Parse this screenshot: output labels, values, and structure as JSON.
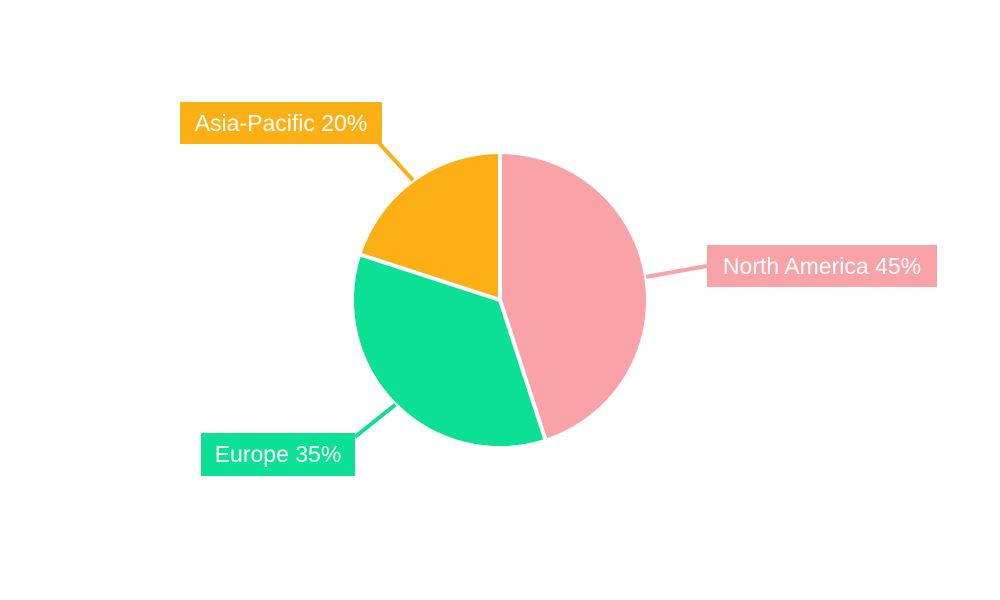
{
  "page": {
    "background_color": "#ffffff"
  },
  "chart_data": {
    "type": "pie",
    "start_angle": "top",
    "direction": "clockwise",
    "legend": "none",
    "slice_border_color": "#ffffff",
    "label_text_color": "#ffffff",
    "slices": [
      {
        "name": "North America",
        "value": 45,
        "color": "#F9A2A7",
        "label": "North America 45%"
      },
      {
        "name": "Europe",
        "value": 35,
        "color": "#0BE094",
        "label": "Europe 35%"
      },
      {
        "name": "Asia-Pacific",
        "value": 20,
        "color": "#FCB016",
        "label": "Asia-Pacific 20%"
      }
    ]
  }
}
